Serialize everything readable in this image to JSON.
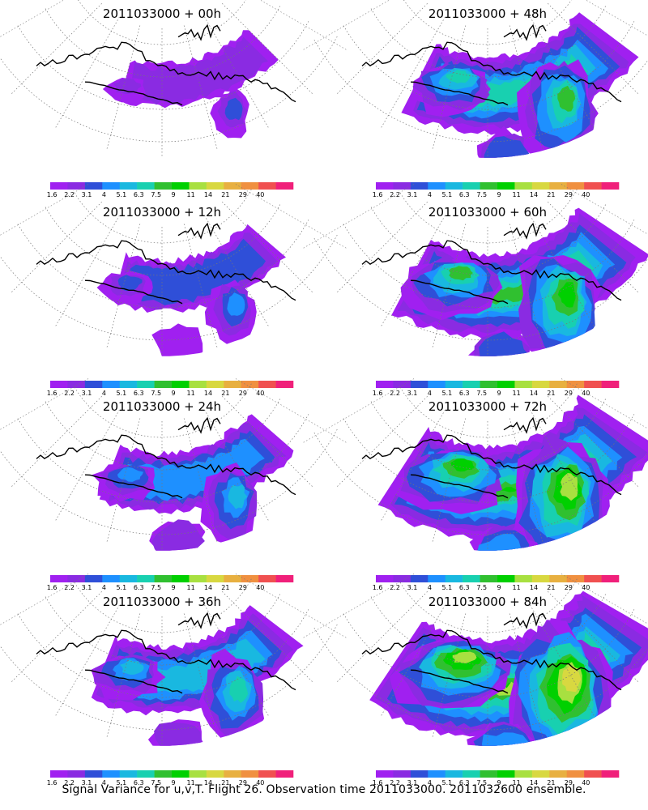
{
  "caption": "Signal Variance for u,v,T. Flight 26. Observation time 2011033000. 2011032600 ensemble.",
  "colorbar": {
    "labels": [
      "1.6",
      "2.2",
      "3.1",
      "4",
      "5.1",
      "6.3",
      "7.5",
      "9",
      "11",
      "14",
      "21",
      "29",
      "40"
    ],
    "colors": [
      "#a020f0",
      "#8a2be2",
      "#2f4fd8",
      "#1e90ff",
      "#19b8e0",
      "#18d0b0",
      "#30c030",
      "#00d000",
      "#a8e040",
      "#d8d840",
      "#e8b040",
      "#f09040",
      "#f05050",
      "#f0207a"
    ]
  },
  "panels": [
    {
      "title": "2011033000 + 00h",
      "intensity": 0
    },
    {
      "title": "2011033000 + 48h",
      "intensity": 4
    },
    {
      "title": "2011033000 + 12h",
      "intensity": 1
    },
    {
      "title": "2011033000 + 60h",
      "intensity": 5
    },
    {
      "title": "2011033000 + 24h",
      "intensity": 2
    },
    {
      "title": "2011033000 + 72h",
      "intensity": 6
    },
    {
      "title": "2011033000 + 36h",
      "intensity": 3
    },
    {
      "title": "2011033000 + 84h",
      "intensity": 7
    }
  ]
}
